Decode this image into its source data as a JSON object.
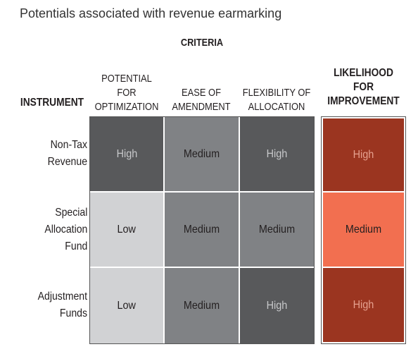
{
  "title": "Potentials associated with revenue earmarking",
  "criteria_label": "CRITERIA",
  "instrument_label": "INSTRUMENT",
  "columns": [
    {
      "label_lines": [
        "POTENTIAL",
        "FOR",
        "OPTIMIZATION"
      ]
    },
    {
      "label_lines": [
        "EASE OF",
        "AMENDMENT"
      ]
    },
    {
      "label_lines": [
        "FLEXIBILITY OF",
        "ALLOCATION"
      ]
    }
  ],
  "likelihood_label_lines": [
    "LIKELIHOOD",
    "FOR",
    "IMPROVEMENT"
  ],
  "rows": [
    {
      "label_lines": [
        "Non-Tax",
        "Revenue"
      ],
      "cells": [
        {
          "value": "High",
          "bg": "#58595b",
          "fg": "#c8c9cb"
        },
        {
          "value": "Medium",
          "bg": "#808285",
          "fg": "#231f20"
        },
        {
          "value": "High",
          "bg": "#58595b",
          "fg": "#c8c9cb"
        }
      ],
      "likelihood": {
        "value": "High",
        "bg": "#9b3520",
        "fg": "#e6a18f"
      }
    },
    {
      "label_lines": [
        "Special",
        "Allocation",
        "Fund"
      ],
      "cells": [
        {
          "value": "Low",
          "bg": "#d1d2d4",
          "fg": "#231f20"
        },
        {
          "value": "Medium",
          "bg": "#808285",
          "fg": "#231f20"
        },
        {
          "value": "Medium",
          "bg": "#808285",
          "fg": "#231f20"
        }
      ],
      "likelihood": {
        "value": "Medium",
        "bg": "#f26f50",
        "fg": "#231f20"
      }
    },
    {
      "label_lines": [
        "Adjustment",
        "Funds"
      ],
      "cells": [
        {
          "value": "Low",
          "bg": "#d1d2d4",
          "fg": "#231f20"
        },
        {
          "value": "Medium",
          "bg": "#808285",
          "fg": "#231f20"
        },
        {
          "value": "High",
          "bg": "#58595b",
          "fg": "#c8c9cb"
        }
      ],
      "likelihood": {
        "value": "High",
        "bg": "#9b3520",
        "fg": "#e6a18f"
      }
    }
  ]
}
